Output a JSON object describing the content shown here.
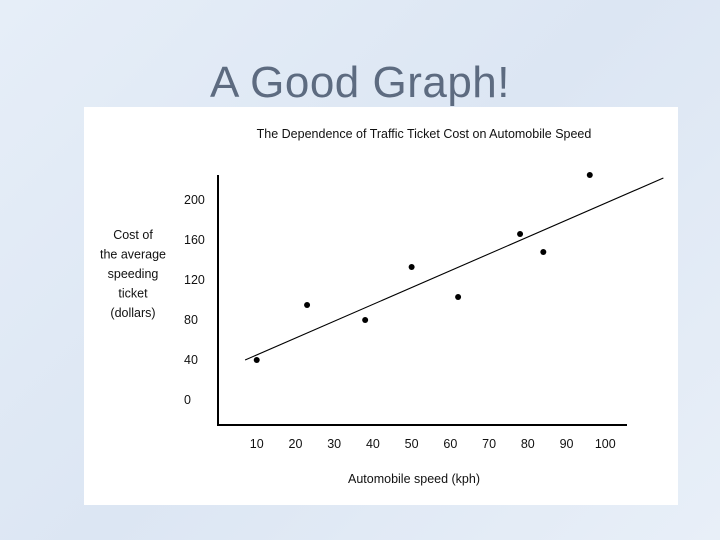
{
  "slide": {
    "title": "A Good Graph!"
  },
  "chart_data": {
    "type": "scatter",
    "title": "The Dependence of Traffic Ticket Cost on Automobile Speed",
    "xlabel": "Automobile speed (kph)",
    "ylabel_lines": [
      "Cost of",
      "the average",
      "speeding",
      "ticket",
      "(dollars)"
    ],
    "x_ticks": [
      10,
      20,
      30,
      40,
      50,
      60,
      70,
      80,
      90,
      100
    ],
    "y_ticks": [
      0,
      40,
      80,
      120,
      160,
      200
    ],
    "xlim": [
      0,
      110
    ],
    "ylim": [
      -25,
      225
    ],
    "points": [
      {
        "x": 10,
        "y": 40
      },
      {
        "x": 23,
        "y": 95
      },
      {
        "x": 38,
        "y": 80
      },
      {
        "x": 50,
        "y": 133
      },
      {
        "x": 62,
        "y": 103
      },
      {
        "x": 78,
        "y": 166
      },
      {
        "x": 84,
        "y": 148
      },
      {
        "x": 96,
        "y": 225
      }
    ],
    "trend_line": {
      "x": [
        7,
        115
      ],
      "y": [
        40,
        222
      ]
    },
    "grid": false,
    "legend": "none"
  }
}
